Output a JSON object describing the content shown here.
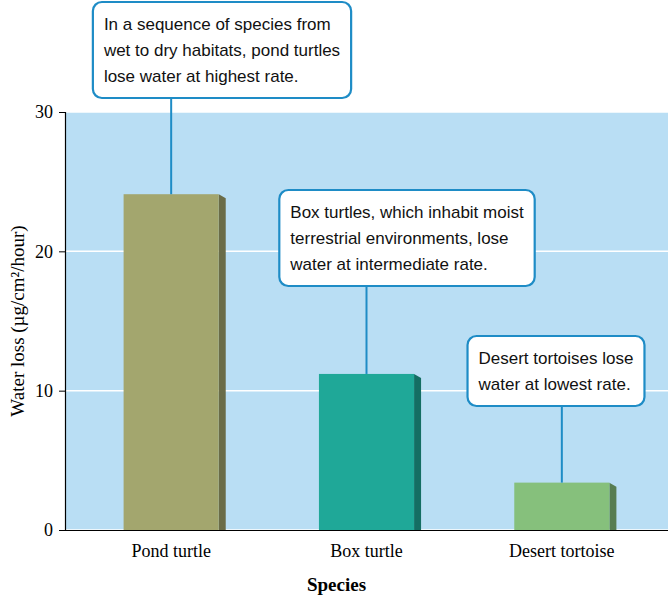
{
  "chart_data": {
    "type": "bar",
    "categories": [
      "Pond turtle",
      "Box turtle",
      "Desert tortoise"
    ],
    "values": [
      24.1,
      11.2,
      3.4
    ],
    "colors": [
      "#a3a66e",
      "#1fa898",
      "#86c07c"
    ],
    "ylim": [
      0,
      30
    ],
    "yticks": [
      0,
      10,
      20,
      30
    ],
    "grid": true,
    "x_label": "Species",
    "y_label": "Water loss (µg/cm²/hour)",
    "annotations": [
      {
        "text": [
          "In a sequence of species from",
          "wet to dry habitats, pond turtles",
          "lose water at highest rate."
        ]
      },
      {
        "text": [
          "Box turtles, which inhabit moist",
          "terrestrial environments, lose",
          "water at intermediate rate."
        ]
      },
      {
        "text": [
          "Desert tortoises lose",
          "water at lowest rate."
        ]
      }
    ]
  }
}
